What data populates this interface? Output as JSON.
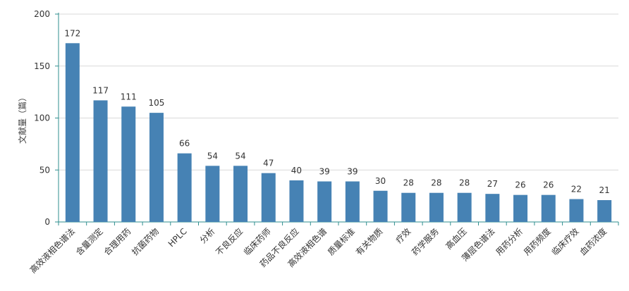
{
  "chart_data": {
    "type": "bar",
    "title": "",
    "xlabel": "",
    "ylabel": "文献量（篇）",
    "ylim": [
      0,
      200
    ],
    "yticks": [
      0,
      50,
      100,
      150,
      200
    ],
    "grid": true,
    "legend": "none",
    "bar_color": "#4682b4",
    "grid_color": "#d9d9d9",
    "axis_color": "#2f8f8f",
    "categories": [
      "高效液相色谱法",
      "含量测定",
      "合理用药",
      "抗菌药物",
      "HPLC",
      "分析",
      "不良反应",
      "临床药师",
      "药品不良反应",
      "高效液相色谱",
      "质量标准",
      "有关物质",
      "疗效",
      "药学服务",
      "高血压",
      "薄层色谱法",
      "用药分析",
      "用药频度",
      "临床疗效",
      "血药浓度"
    ],
    "values": [
      172,
      117,
      111,
      105,
      66,
      54,
      54,
      47,
      40,
      39,
      39,
      30,
      28,
      28,
      28,
      27,
      26,
      26,
      22,
      21
    ]
  }
}
